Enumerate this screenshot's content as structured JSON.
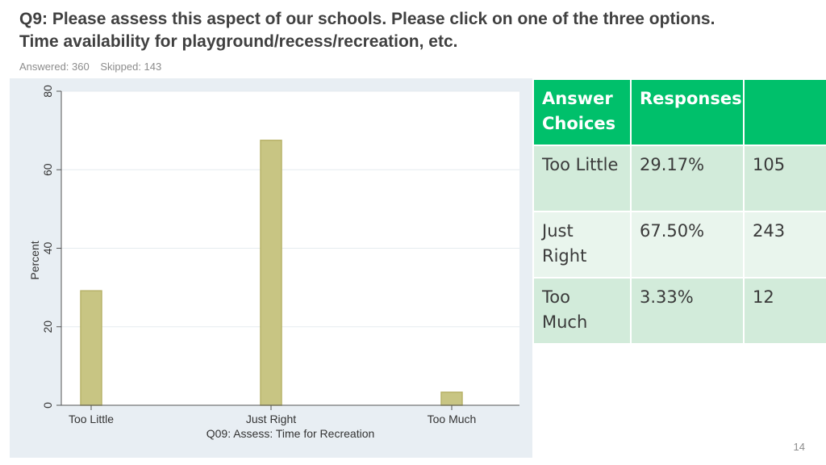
{
  "title": {
    "line1": "Q9: Please assess this aspect of our schools. Please click on one of the three options.",
    "line2": "Time availability for playground/recess/recreation, etc."
  },
  "stats": {
    "answered": "Answered: 360",
    "skipped": "Skipped: 143"
  },
  "chart_data": {
    "type": "bar",
    "categories": [
      "Too Little",
      "Just Right",
      "Too Much"
    ],
    "values": [
      29.17,
      67.5,
      3.33
    ],
    "xlabel": "Q09: Assess: Time for Recreation",
    "ylabel": "Percent",
    "ylim": [
      0,
      80
    ],
    "yticks": [
      0,
      20,
      40,
      60,
      80
    ],
    "ytick_labels": [
      "0",
      "20",
      "40",
      "60",
      "80"
    ],
    "grid": true,
    "bar_color": "#c8c583",
    "bar_edge_color": "#b8b36a"
  },
  "table": {
    "headers": [
      "Answer Choices",
      "Responses",
      ""
    ],
    "rows": [
      {
        "choice": "Too Little",
        "percent": "29.17%",
        "count": "105"
      },
      {
        "choice": "Just Right",
        "percent": "67.50%",
        "count": "243"
      },
      {
        "choice": "Too Much",
        "percent": "3.33%",
        "count": "12"
      }
    ]
  },
  "page_number": "14",
  "colors": {
    "header_green": "#00c06b",
    "row_dark": "#d2ebda",
    "row_light": "#e9f5ed",
    "chart_bg": "#e8eef3",
    "title_text": "#404040"
  }
}
